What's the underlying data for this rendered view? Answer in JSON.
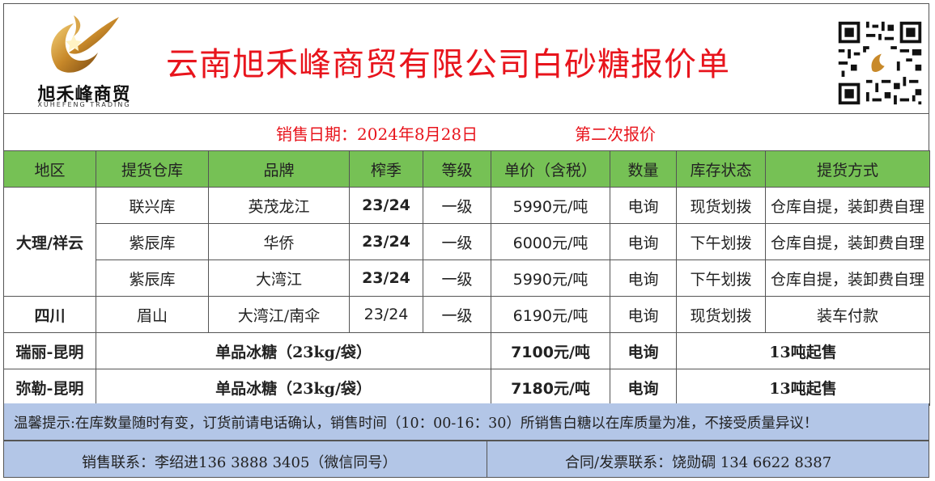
{
  "header": {
    "company_title": "云南旭禾峰商贸有限公司白砂糖报价单",
    "logo_cn": "旭禾峰商贸",
    "logo_en": "XUHEFENG TRADING",
    "title_color": "#e8141c"
  },
  "meta": {
    "sale_date": "销售日期：2024年8月28日",
    "quote_round": "第二次报价"
  },
  "table": {
    "columns": [
      "地区",
      "提货仓库",
      "品牌",
      "榨季",
      "等级",
      "单价（含税）",
      "数量",
      "库存状态",
      "提货方式"
    ],
    "header_color": "#76c155",
    "groups": [
      {
        "region": "大理/祥云",
        "rows": [
          {
            "warehouse": "联兴库",
            "brand": "英茂龙江",
            "season": "23/24",
            "grade": "一级",
            "price": "5990元/吨",
            "qty": "电询",
            "stock": "现货划拨",
            "pickup": "仓库自提，装卸费自理"
          },
          {
            "warehouse": "紫辰库",
            "brand": "华侨",
            "season": "23/24",
            "grade": "一级",
            "price": "6000元/吨",
            "qty": "电询",
            "stock": "下午划拨",
            "pickup": "仓库自提，装卸费自理"
          },
          {
            "warehouse": "紫辰库",
            "brand": "大湾江",
            "season": "23/24",
            "grade": "一级",
            "price": "5990元/吨",
            "qty": "电询",
            "stock": "下午划拨",
            "pickup": "仓库自提，装卸费自理"
          }
        ]
      },
      {
        "region": "四川",
        "rows": [
          {
            "warehouse": "眉山",
            "brand": "大湾江/南伞",
            "season": "23/24",
            "grade": "一级",
            "price": "6190元/吨",
            "qty": "电询",
            "stock": "现货划拨",
            "pickup": "装车付款"
          }
        ]
      }
    ],
    "rock_sugar": [
      {
        "region": "瑞丽-昆明",
        "product": "单品冰糖（23kg/袋）",
        "price": "7100元/吨",
        "qty": "电询",
        "terms": "13吨起售"
      },
      {
        "region": "弥勒-昆明",
        "product": "单品冰糖（23kg/袋）",
        "price": "7180元/吨",
        "qty": "电询",
        "terms": "13吨起售"
      }
    ]
  },
  "footer": {
    "notice": "温馨提示:在库数量随时有变，订货前请电话确认，销售时间（10：00-16：30）所销售白糖以在库质量为准，不接受质量异议！",
    "sales_contact": "销售联系：李绍进136 3888 3405（微信同号）",
    "contract_contact": "合同/发票联系：饶勋碉   134 6622 8387",
    "band_color": "#b3c6e7"
  }
}
